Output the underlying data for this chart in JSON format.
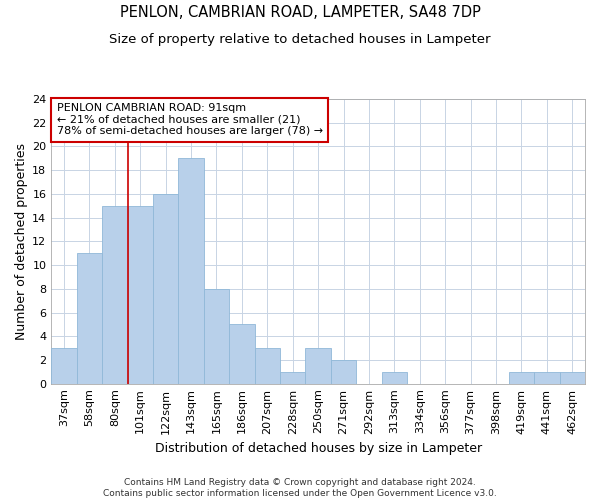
{
  "title_line1": "PENLON, CAMBRIAN ROAD, LAMPETER, SA48 7DP",
  "title_line2": "Size of property relative to detached houses in Lampeter",
  "xlabel": "Distribution of detached houses by size in Lampeter",
  "ylabel": "Number of detached properties",
  "footnote": "Contains HM Land Registry data © Crown copyright and database right 2024.\nContains public sector information licensed under the Open Government Licence v3.0.",
  "bar_labels": [
    "37sqm",
    "58sqm",
    "80sqm",
    "101sqm",
    "122sqm",
    "143sqm",
    "165sqm",
    "186sqm",
    "207sqm",
    "228sqm",
    "250sqm",
    "271sqm",
    "292sqm",
    "313sqm",
    "334sqm",
    "356sqm",
    "377sqm",
    "398sqm",
    "419sqm",
    "441sqm",
    "462sqm"
  ],
  "bar_values": [
    3,
    11,
    15,
    15,
    16,
    19,
    8,
    5,
    3,
    1,
    3,
    2,
    0,
    1,
    0,
    0,
    0,
    0,
    1,
    1,
    1
  ],
  "bar_color": "#b8d0ea",
  "bar_edge_color": "#90b8d8",
  "vline_x": 2.5,
  "vline_color": "#cc0000",
  "annotation_text": "PENLON CAMBRIAN ROAD: 91sqm\n← 21% of detached houses are smaller (21)\n78% of semi-detached houses are larger (78) →",
  "annotation_box_edgecolor": "#cc0000",
  "annotation_fill": "white",
  "ylim": [
    0,
    24
  ],
  "yticks": [
    0,
    2,
    4,
    6,
    8,
    10,
    12,
    14,
    16,
    18,
    20,
    22,
    24
  ],
  "grid_color": "#c8d4e4",
  "background_color": "white",
  "title_fontsize": 10.5,
  "subtitle_fontsize": 9.5,
  "xlabel_fontsize": 9,
  "ylabel_fontsize": 9,
  "tick_fontsize": 8,
  "annot_fontsize": 8,
  "footnote_fontsize": 6.5
}
